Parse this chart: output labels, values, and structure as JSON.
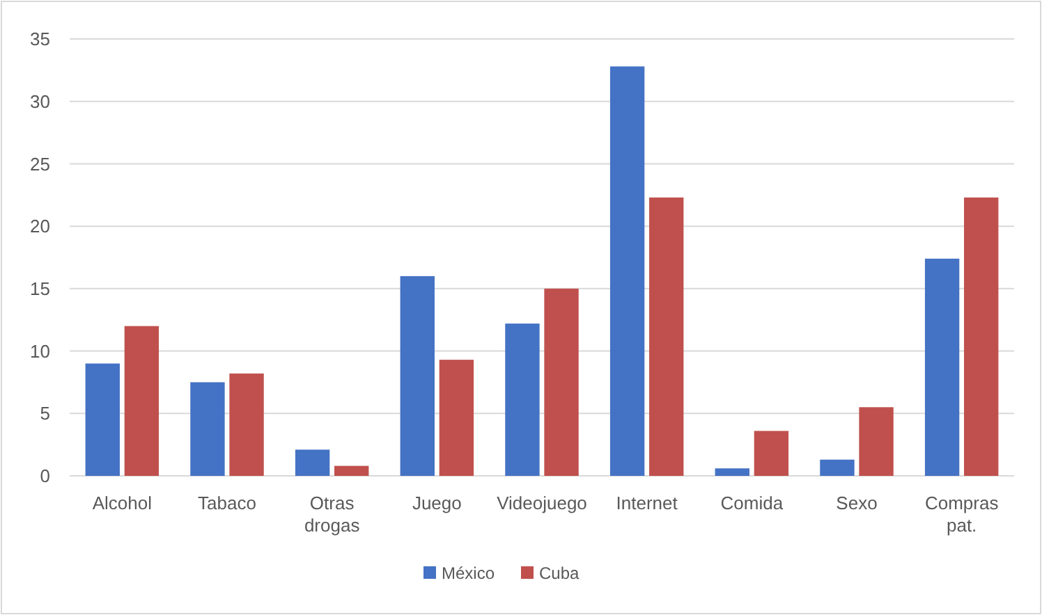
{
  "chart_data": {
    "type": "bar",
    "categories": [
      "Alcohol",
      "Tabaco",
      "Otras drogas",
      "Juego",
      "Videojuego",
      "Internet",
      "Comida",
      "Sexo",
      "Compras pat."
    ],
    "series": [
      {
        "name": "México",
        "color": "#4472c4",
        "values": [
          9,
          7.5,
          2.1,
          16,
          12.2,
          32.8,
          0.6,
          1.3,
          17.4
        ]
      },
      {
        "name": "Cuba",
        "color": "#c0504d",
        "values": [
          12,
          8.2,
          0.8,
          9.3,
          15,
          22.3,
          3.6,
          5.5,
          22.3
        ]
      }
    ],
    "ylim": [
      0,
      35
    ],
    "yticks": [
      0,
      5,
      10,
      15,
      20,
      25,
      30,
      35
    ],
    "grid": "y",
    "legend": "bottom"
  }
}
